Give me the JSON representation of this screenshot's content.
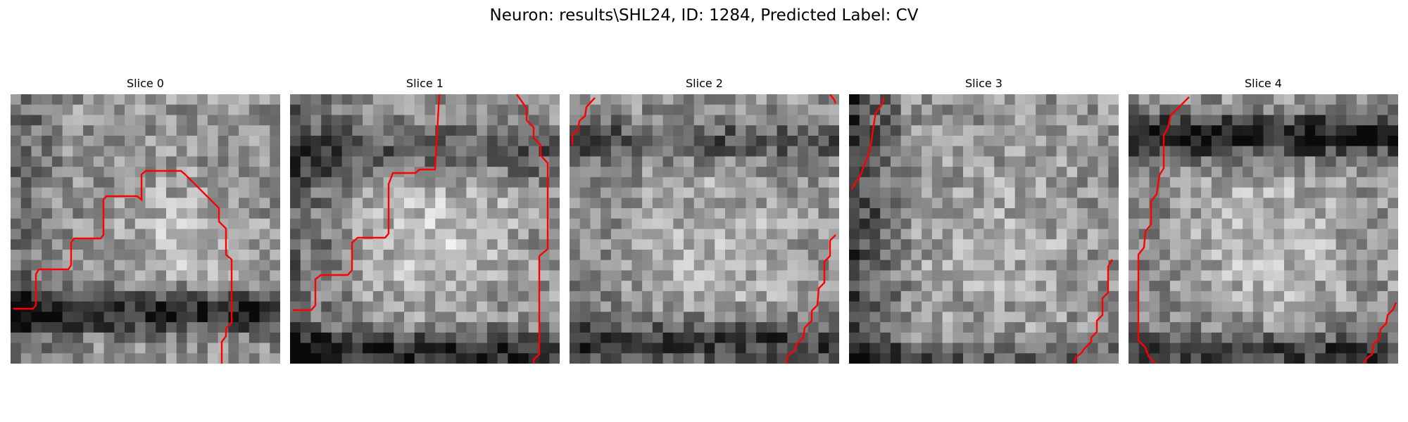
{
  "figure": {
    "title": "Neuron: results\\SHL24, ID: 1284, Predicted Label: CV"
  },
  "colors": {
    "background": "#ffffff",
    "contour": "#ff0000"
  },
  "image": {
    "colormap": "gray",
    "grid_size": 26
  },
  "panels": [
    {
      "title": "Slice 0",
      "seed": 11
    },
    {
      "title": "Slice 1",
      "seed": 23
    },
    {
      "title": "Slice 2",
      "seed": 37
    },
    {
      "title": "Slice 3",
      "seed": 41
    },
    {
      "title": "Slice 4",
      "seed": 59
    }
  ]
}
